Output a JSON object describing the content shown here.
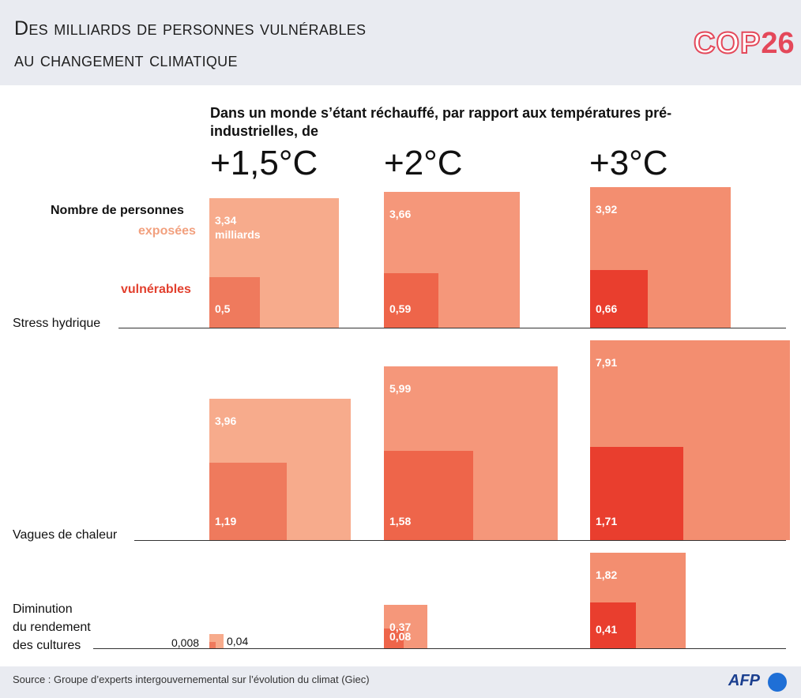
{
  "header": {
    "title_line1": "Des milliards de personnes vulnérables",
    "title_line2": "au changement climatique",
    "logo_cop": "COP",
    "logo_num": "26"
  },
  "subtitle": "Dans un monde s’étant réchauffé, par rapport aux températures pré-industrielles, de",
  "temperatures": [
    "+1,5°C",
    "+2°C",
    "+3°C"
  ],
  "legend": {
    "title": "Nombre de personnes",
    "exposed": "exposées",
    "vulnerable": "vulnérables",
    "unit": "milliards"
  },
  "colors": {
    "exposed_1_5": "#f7ab8c",
    "exposed_2": "#f5977a",
    "exposed_3": "#f38e70",
    "vulnerable_1_5": "#ef7a5d",
    "vulnerable_2": "#ee654a",
    "vulnerable_3": "#e93e2e"
  },
  "chart_data": {
    "type": "area",
    "unit": "milliards",
    "scenarios": [
      "+1,5°C",
      "+2°C",
      "+3°C"
    ],
    "categories": [
      {
        "name": "Stress hydrique",
        "exposed": [
          3.34,
          3.66,
          3.92
        ],
        "exposed_labels": [
          "3,34",
          "3,66",
          "3,92"
        ],
        "vulnerable": [
          0.5,
          0.59,
          0.66
        ],
        "vulnerable_labels": [
          "0,5",
          "0,59",
          "0,66"
        ]
      },
      {
        "name": "Vagues de chaleur",
        "exposed": [
          3.96,
          5.99,
          7.91
        ],
        "exposed_labels": [
          "3,96",
          "5,99",
          "7,91"
        ],
        "vulnerable": [
          1.19,
          1.58,
          1.71
        ],
        "vulnerable_labels": [
          "1,19",
          "1,58",
          "1,71"
        ]
      },
      {
        "name": "Diminution du rendement des cultures",
        "name_lines": [
          "Diminution",
          "du rendement",
          "des cultures"
        ],
        "exposed": [
          0.04,
          0.37,
          1.82
        ],
        "exposed_labels": [
          "0,04",
          "0,37",
          "1,82"
        ],
        "vulnerable": [
          0.008,
          0.08,
          0.41
        ],
        "vulnerable_labels": [
          "0,008",
          "0,08",
          "0,41"
        ]
      }
    ]
  },
  "footer": {
    "source": "Source : Groupe d’experts intergouvernemental sur l’évolution du climat (Giec)",
    "agency": "AFP"
  }
}
